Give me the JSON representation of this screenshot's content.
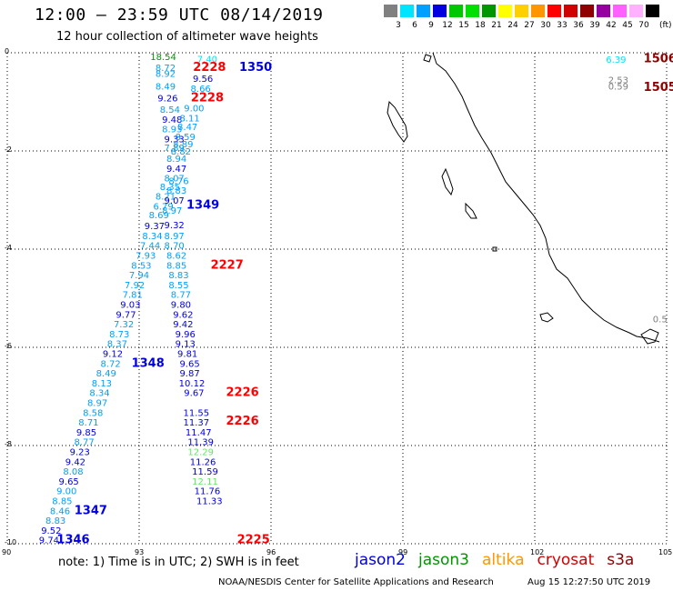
{
  "header": {
    "title": "12:00 – 23:59 UTC 08/14/2019",
    "subtitle": "12 hour collection of altimeter wave heights"
  },
  "legend": {
    "unit": "(ft)",
    "bins": [
      {
        "label": "3",
        "color": "#808080"
      },
      {
        "label": "6",
        "color": "#00e5ff"
      },
      {
        "label": "9",
        "color": "#00a0ff"
      },
      {
        "label": "12",
        "color": "#0000e0"
      },
      {
        "label": "15",
        "color": "#00c800"
      },
      {
        "label": "18",
        "color": "#00e000"
      },
      {
        "label": "21",
        "color": "#009600"
      },
      {
        "label": "24",
        "color": "#ffff00"
      },
      {
        "label": "27",
        "color": "#ffd000"
      },
      {
        "label": "30",
        "color": "#ff9600"
      },
      {
        "label": "33",
        "color": "#ff0000"
      },
      {
        "label": "36",
        "color": "#d00000"
      },
      {
        "label": "39",
        "color": "#900000"
      },
      {
        "label": "42",
        "color": "#9600a0"
      },
      {
        "label": "45",
        "color": "#ff60ff"
      },
      {
        "label": "70",
        "color": "#ffb0ff"
      },
      {
        "label": "",
        "color": "#000000"
      }
    ]
  },
  "axes": {
    "lon_ticks": [
      "90",
      "93",
      "96",
      "99",
      "102",
      "105"
    ],
    "lat_ticks": [
      "0",
      "-2",
      "-4",
      "-6",
      "-8",
      "-10"
    ]
  },
  "map": {
    "track_labels": [
      {
        "text": "18.54",
        "color": "#009600",
        "lon": 93.55,
        "lat": -0.07
      },
      {
        "text": "8.72",
        "color": "#00a0ff",
        "lon": 93.6,
        "lat": -0.3
      },
      {
        "text": "8.92",
        "color": "#00a0ff",
        "lon": 93.6,
        "lat": -0.42
      },
      {
        "text": "8.49",
        "color": "#00a0ff",
        "lon": 93.6,
        "lat": -0.68
      },
      {
        "text": "9.26",
        "color": "#0000e0",
        "lon": 93.65,
        "lat": -0.92
      },
      {
        "text": "8.54",
        "color": "#00a0ff",
        "lon": 93.7,
        "lat": -1.15
      },
      {
        "text": "9.48",
        "color": "#0000e0",
        "lon": 93.75,
        "lat": -1.35
      },
      {
        "text": "8.93",
        "color": "#00a0ff",
        "lon": 93.75,
        "lat": -1.55
      },
      {
        "text": "9.33",
        "color": "#0000e0",
        "lon": 93.8,
        "lat": -1.75
      },
      {
        "text": "7.89",
        "color": "#00a0ff",
        "lon": 93.8,
        "lat": -1.93
      },
      {
        "text": "8.94",
        "color": "#00a0ff",
        "lon": 93.85,
        "lat": -2.15
      },
      {
        "text": "9.47",
        "color": "#0000e0",
        "lon": 93.85,
        "lat": -2.35
      },
      {
        "text": "8.07",
        "color": "#00a0ff",
        "lon": 93.8,
        "lat": -2.55
      },
      {
        "text": "8.35",
        "color": "#00a0ff",
        "lon": 93.7,
        "lat": -2.72
      },
      {
        "text": "8.21",
        "color": "#00a0ff",
        "lon": 93.6,
        "lat": -2.92
      },
      {
        "text": "6.79",
        "color": "#00a0ff",
        "lon": 93.55,
        "lat": -3.12
      },
      {
        "text": "8.69",
        "color": "#00a0ff",
        "lon": 93.45,
        "lat": -3.3
      },
      {
        "text": "9.37",
        "color": "#0000e0",
        "lon": 93.35,
        "lat": -3.52
      },
      {
        "text": "8.34",
        "color": "#00a0ff",
        "lon": 93.3,
        "lat": -3.72
      },
      {
        "text": "7.44",
        "color": "#00a0ff",
        "lon": 93.25,
        "lat": -3.92
      },
      {
        "text": "7.93",
        "color": "#00a0ff",
        "lon": 93.15,
        "lat": -4.12
      },
      {
        "text": "8.53",
        "color": "#00a0ff",
        "lon": 93.05,
        "lat": -4.32
      },
      {
        "text": "7.94",
        "color": "#00a0ff",
        "lon": 93.0,
        "lat": -4.52
      },
      {
        "text": "7.92",
        "color": "#00a0ff",
        "lon": 92.9,
        "lat": -4.72
      },
      {
        "text": "7.81",
        "color": "#00a0ff",
        "lon": 92.85,
        "lat": -4.92
      },
      {
        "text": "9.03",
        "color": "#0000e0",
        "lon": 92.8,
        "lat": -5.12
      },
      {
        "text": "9.77",
        "color": "#0000e0",
        "lon": 92.7,
        "lat": -5.32
      },
      {
        "text": "7.32",
        "color": "#00a0ff",
        "lon": 92.65,
        "lat": -5.52
      },
      {
        "text": "8.73",
        "color": "#00a0ff",
        "lon": 92.55,
        "lat": -5.72
      },
      {
        "text": "8.37",
        "color": "#00a0ff",
        "lon": 92.5,
        "lat": -5.92
      },
      {
        "text": "9.12",
        "color": "#0000e0",
        "lon": 92.4,
        "lat": -6.12
      },
      {
        "text": "8.72",
        "color": "#00a0ff",
        "lon": 92.35,
        "lat": -6.32
      },
      {
        "text": "8.49",
        "color": "#00a0ff",
        "lon": 92.25,
        "lat": -6.52
      },
      {
        "text": "8.13",
        "color": "#00a0ff",
        "lon": 92.15,
        "lat": -6.72
      },
      {
        "text": "8.34",
        "color": "#00a0ff",
        "lon": 92.1,
        "lat": -6.92
      },
      {
        "text": "8.97",
        "color": "#00a0ff",
        "lon": 92.05,
        "lat": -7.12
      },
      {
        "text": "8.58",
        "color": "#00a0ff",
        "lon": 91.95,
        "lat": -7.32
      },
      {
        "text": "8.71",
        "color": "#00a0ff",
        "lon": 91.85,
        "lat": -7.52
      },
      {
        "text": "9.85",
        "color": "#0000e0",
        "lon": 91.8,
        "lat": -7.72
      },
      {
        "text": "8.77",
        "color": "#00a0ff",
        "lon": 91.75,
        "lat": -7.92
      },
      {
        "text": "9.23",
        "color": "#0000e0",
        "lon": 91.65,
        "lat": -8.12
      },
      {
        "text": "9.42",
        "color": "#0000e0",
        "lon": 91.55,
        "lat": -8.32
      },
      {
        "text": "8.08",
        "color": "#00a0ff",
        "lon": 91.5,
        "lat": -8.52
      },
      {
        "text": "9.65",
        "color": "#0000e0",
        "lon": 91.4,
        "lat": -8.72
      },
      {
        "text": "9.00",
        "color": "#00a0ff",
        "lon": 91.35,
        "lat": -8.92
      },
      {
        "text": "8.85",
        "color": "#00a0ff",
        "lon": 91.25,
        "lat": -9.12
      },
      {
        "text": "8.46",
        "color": "#00a0ff",
        "lon": 91.2,
        "lat": -9.32
      },
      {
        "text": "8.83",
        "color": "#00a0ff",
        "lon": 91.1,
        "lat": -9.52
      },
      {
        "text": "9.52",
        "color": "#0000e0",
        "lon": 91.0,
        "lat": -9.72
      },
      {
        "text": "9.74",
        "color": "#0000e0",
        "lon": 90.95,
        "lat": -9.92
      },
      {
        "text": "7.40",
        "color": "#00e5ff",
        "lon": 94.55,
        "lat": -0.12
      },
      {
        "text": "9.56",
        "color": "#0000e0",
        "lon": 94.45,
        "lat": -0.52
      },
      {
        "text": "8.66",
        "color": "#00a0ff",
        "lon": 94.4,
        "lat": -0.72
      },
      {
        "text": "9.00",
        "color": "#00a0ff",
        "lon": 94.25,
        "lat": -1.12
      },
      {
        "text": "8.11",
        "color": "#00a0ff",
        "lon": 94.15,
        "lat": -1.32
      },
      {
        "text": "8.47",
        "color": "#00a0ff",
        "lon": 94.1,
        "lat": -1.5
      },
      {
        "text": "8.59",
        "color": "#00a0ff",
        "lon": 94.05,
        "lat": -1.7
      },
      {
        "text": "8.89",
        "color": "#00a0ff",
        "lon": 94.0,
        "lat": -1.85
      },
      {
        "text": "8.82",
        "color": "#00a0ff",
        "lon": 93.95,
        "lat": -2.0
      },
      {
        "text": "8.76",
        "color": "#00a0ff",
        "lon": 93.9,
        "lat": -2.6
      },
      {
        "text": "8.83",
        "color": "#00a0ff",
        "lon": 93.85,
        "lat": -2.8
      },
      {
        "text": "9.07",
        "color": "#0000e0",
        "lon": 93.8,
        "lat": -3.0
      },
      {
        "text": "8.97",
        "color": "#00a0ff",
        "lon": 93.75,
        "lat": -3.2
      },
      {
        "text": "9.32",
        "color": "#0000e0",
        "lon": 93.8,
        "lat": -3.5
      },
      {
        "text": "8.97",
        "color": "#00a0ff",
        "lon": 93.8,
        "lat": -3.72
      },
      {
        "text": "8.70",
        "color": "#00a0ff",
        "lon": 93.8,
        "lat": -3.92
      },
      {
        "text": "8.62",
        "color": "#00a0ff",
        "lon": 93.85,
        "lat": -4.12
      },
      {
        "text": "8.85",
        "color": "#00a0ff",
        "lon": 93.85,
        "lat": -4.32
      },
      {
        "text": "8.83",
        "color": "#00a0ff",
        "lon": 93.9,
        "lat": -4.52
      },
      {
        "text": "8.55",
        "color": "#00a0ff",
        "lon": 93.9,
        "lat": -4.72
      },
      {
        "text": "8.77",
        "color": "#00a0ff",
        "lon": 93.95,
        "lat": -4.92
      },
      {
        "text": "9.80",
        "color": "#0000e0",
        "lon": 93.95,
        "lat": -5.12
      },
      {
        "text": "9.62",
        "color": "#0000e0",
        "lon": 94.0,
        "lat": -5.32
      },
      {
        "text": "9.42",
        "color": "#0000e0",
        "lon": 94.0,
        "lat": -5.52
      },
      {
        "text": "9.96",
        "color": "#0000e0",
        "lon": 94.05,
        "lat": -5.72
      },
      {
        "text": "9.13",
        "color": "#0000e0",
        "lon": 94.05,
        "lat": -5.92
      },
      {
        "text": "9.81",
        "color": "#0000e0",
        "lon": 94.1,
        "lat": -6.12
      },
      {
        "text": "9.65",
        "color": "#0000e0",
        "lon": 94.15,
        "lat": -6.32
      },
      {
        "text": "9.87",
        "color": "#0000e0",
        "lon": 94.15,
        "lat": -6.52
      },
      {
        "text": "10.12",
        "color": "#0000e0",
        "lon": 94.2,
        "lat": -6.72
      },
      {
        "text": "9.67",
        "color": "#0000e0",
        "lon": 94.25,
        "lat": -6.92
      },
      {
        "text": "11.55",
        "color": "#0000e0",
        "lon": 94.3,
        "lat": -7.32
      },
      {
        "text": "11.37",
        "color": "#0000e0",
        "lon": 94.3,
        "lat": -7.52
      },
      {
        "text": "11.47",
        "color": "#0000e0",
        "lon": 94.35,
        "lat": -7.72
      },
      {
        "text": "11.39",
        "color": "#0000e0",
        "lon": 94.4,
        "lat": -7.92
      },
      {
        "text": "12.29",
        "color": "#66e666",
        "lon": 94.4,
        "lat": -8.12
      },
      {
        "text": "11.26",
        "color": "#0000e0",
        "lon": 94.45,
        "lat": -8.32
      },
      {
        "text": "11.59",
        "color": "#0000e0",
        "lon": 94.5,
        "lat": -8.52
      },
      {
        "text": "12.11",
        "color": "#66e666",
        "lon": 94.5,
        "lat": -8.72
      },
      {
        "text": "11.76",
        "color": "#0000e0",
        "lon": 94.55,
        "lat": -8.92
      },
      {
        "text": "11.33",
        "color": "#0000e0",
        "lon": 94.6,
        "lat": -9.12
      },
      {
        "text": "6.39",
        "color": "#00e5ff",
        "lon": 103.85,
        "lat": -0.13
      },
      {
        "text": "2.53",
        "color": "#808080",
        "lon": 103.9,
        "lat": -0.55
      },
      {
        "text": "0.59",
        "color": "#808080",
        "lon": 103.9,
        "lat": -0.68
      },
      {
        "text": "0.5",
        "color": "#808080",
        "lon": 104.85,
        "lat": -5.42
      }
    ],
    "time_labels": [
      {
        "text": "2228",
        "color": "#ff0000",
        "lon": 94.6,
        "lat": -0.3
      },
      {
        "text": "1350",
        "color": "#0000e0",
        "lon": 95.65,
        "lat": -0.3
      },
      {
        "text": "2228",
        "color": "#ff0000",
        "lon": 94.55,
        "lat": -0.92
      },
      {
        "text": "1349",
        "color": "#0000e0",
        "lon": 94.45,
        "lat": -3.1
      },
      {
        "text": "2227",
        "color": "#ff0000",
        "lon": 95.0,
        "lat": -4.32
      },
      {
        "text": "1348",
        "color": "#0000e0",
        "lon": 93.2,
        "lat": -6.32
      },
      {
        "text": "2226",
        "color": "#ff0000",
        "lon": 95.35,
        "lat": -6.92
      },
      {
        "text": "2226",
        "color": "#ff0000",
        "lon": 95.35,
        "lat": -7.5
      },
      {
        "text": "1347",
        "color": "#0000e0",
        "lon": 91.9,
        "lat": -9.32
      },
      {
        "text": "1346",
        "color": "#0000e0",
        "lon": 91.5,
        "lat": -9.92
      },
      {
        "text": "2225",
        "color": "#ff0000",
        "lon": 95.6,
        "lat": -9.92
      },
      {
        "text": "1506",
        "color": "#900000",
        "lon": 104.85,
        "lat": -0.12
      },
      {
        "text": "1505",
        "color": "#900000",
        "lon": 104.85,
        "lat": -0.7
      }
    ]
  },
  "footer": {
    "note": "note: 1) Time is in UTC; 2) SWH is in feet",
    "satellites": [
      {
        "name": "jason2",
        "color": "#0000e0"
      },
      {
        "name": "jason3",
        "color": "#009600"
      },
      {
        "name": "altika",
        "color": "#ff9600"
      },
      {
        "name": "cryosat",
        "color": "#d00000"
      },
      {
        "name": "s3a",
        "color": "#900000"
      }
    ],
    "credit": "NOAA/NESDIS Center for Satellite Applications and Research",
    "stamp": "Aug 15 12:27:50 UTC 2019"
  }
}
